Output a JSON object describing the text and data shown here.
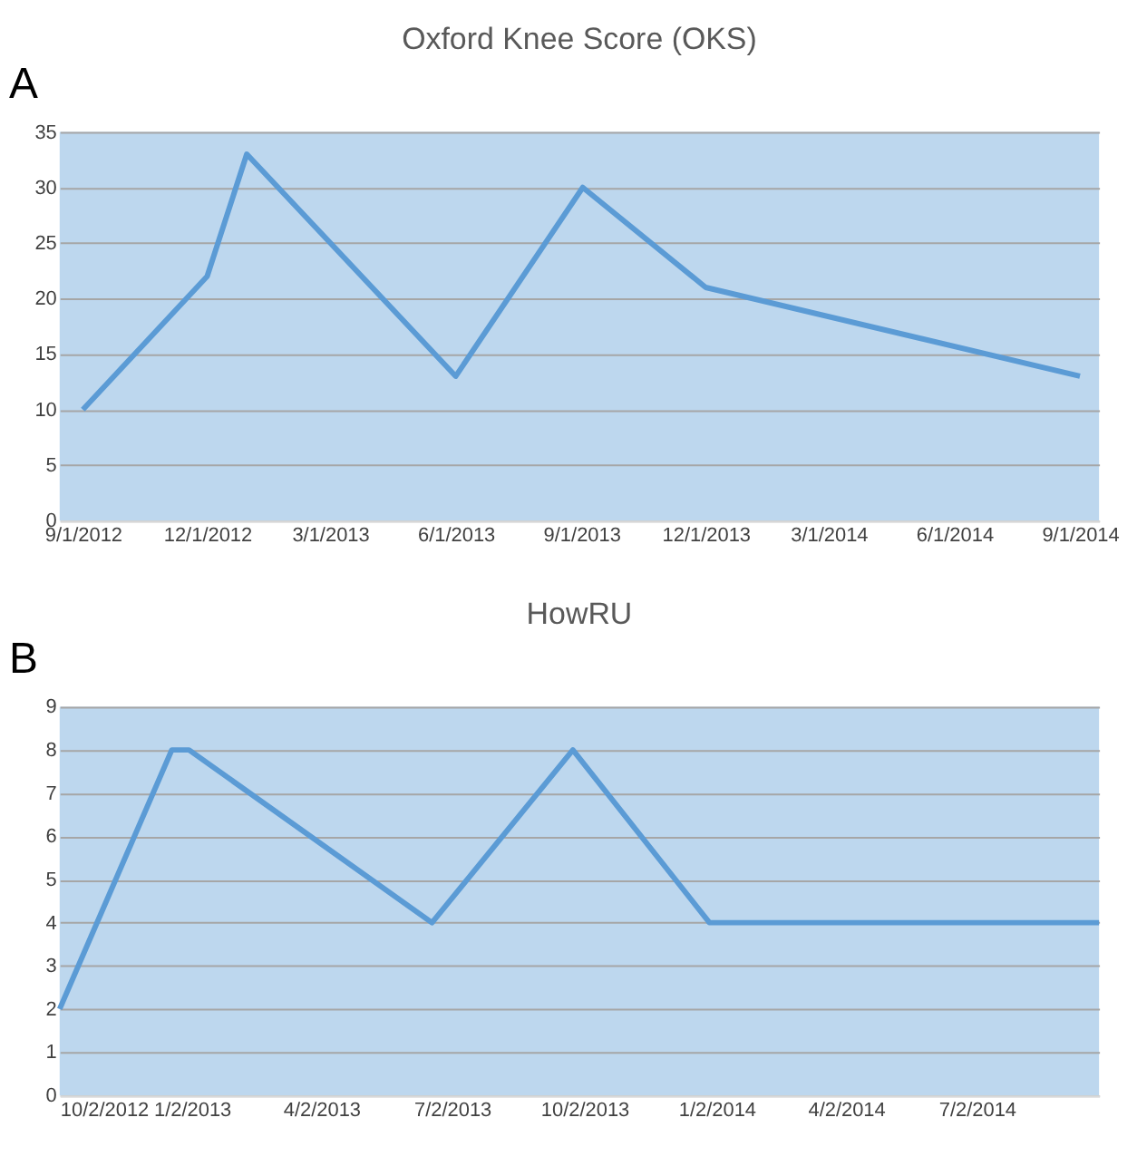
{
  "chart_data": [
    {
      "type": "line",
      "title": "Oxford Knee Score (OKS)",
      "annotations": [
        "A"
      ],
      "x": [
        "2012-09-01",
        "2012-12-01",
        "2012-12-30",
        "2013-06-01",
        "2013-09-02",
        "2013-12-01",
        "2014-09-01"
      ],
      "series": [
        {
          "color": "#5b9bd5",
          "values": [
            10,
            22,
            33,
            13,
            30,
            21,
            13
          ]
        }
      ],
      "xlim": [
        "2012-08-15",
        "2014-09-15"
      ],
      "xticks": [
        {
          "value": "2012-09-01",
          "label": "9/1/2012"
        },
        {
          "value": "2012-12-01",
          "label": "12/1/2012"
        },
        {
          "value": "2013-03-01",
          "label": "3/1/2013"
        },
        {
          "value": "2013-06-01",
          "label": "6/1/2013"
        },
        {
          "value": "2013-09-01",
          "label": "9/1/2013"
        },
        {
          "value": "2013-12-01",
          "label": "12/1/2013"
        },
        {
          "value": "2014-03-01",
          "label": "3/1/2014"
        },
        {
          "value": "2014-06-01",
          "label": "6/1/2014"
        },
        {
          "value": "2014-09-01",
          "label": "9/1/2014"
        }
      ],
      "ylim": [
        0,
        35
      ],
      "yticks": [
        0,
        5,
        10,
        15,
        20,
        25,
        30,
        35
      ],
      "grid": "y",
      "legend": false,
      "marker": "none",
      "line_style": "solid"
    },
    {
      "type": "line",
      "title": "HowRU",
      "annotations": [
        "B"
      ],
      "x": [
        "2012-10-02",
        "2012-12-19",
        "2012-12-31",
        "2013-06-18",
        "2013-09-24",
        "2013-12-28",
        "2014-09-25"
      ],
      "series": [
        {
          "color": "#5b9bd5",
          "values": [
            2,
            8,
            8,
            4,
            8,
            4,
            4
          ]
        }
      ],
      "xlim": [
        "2012-10-02",
        "2014-09-25"
      ],
      "xticks": [
        {
          "value": "2012-10-02",
          "label": "10/2/2012"
        },
        {
          "value": "2013-01-02",
          "label": "1/2/2013"
        },
        {
          "value": "2013-04-02",
          "label": "4/2/2013"
        },
        {
          "value": "2013-07-02",
          "label": "7/2/2013"
        },
        {
          "value": "2013-10-02",
          "label": "10/2/2013"
        },
        {
          "value": "2014-01-02",
          "label": "1/2/2014"
        },
        {
          "value": "2014-04-02",
          "label": "4/2/2014"
        },
        {
          "value": "2014-07-02",
          "label": "7/2/2014"
        }
      ],
      "ylim": [
        0,
        9
      ],
      "yticks": [
        0,
        1,
        2,
        3,
        4,
        5,
        6,
        7,
        8,
        9
      ],
      "grid": "y",
      "legend": false,
      "marker": "none",
      "line_style": "solid"
    }
  ]
}
